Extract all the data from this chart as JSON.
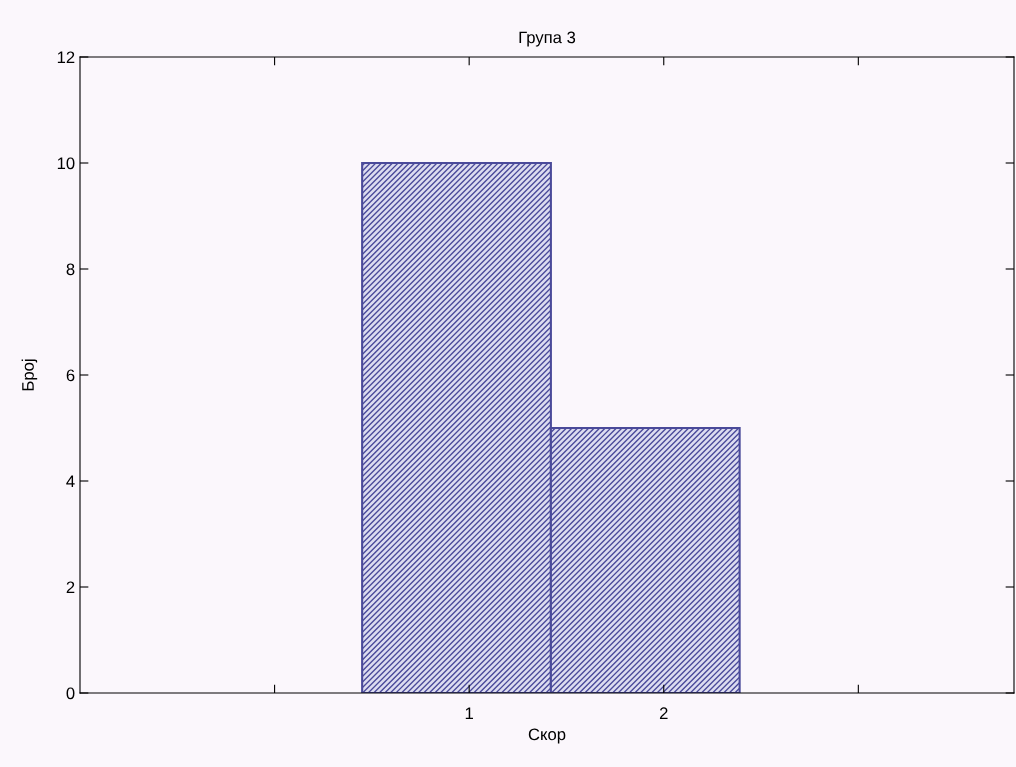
{
  "chart_data": {
    "type": "histogram",
    "title": "Група 3",
    "xlabel": "Скор",
    "ylabel": "Број",
    "bins": [
      0.45,
      1.42,
      2.39
    ],
    "values": [
      10,
      5
    ],
    "color": "#4a4a9a",
    "xlim": [
      -1,
      3.8
    ],
    "xticks": [
      {
        "value": 0,
        "label": null
      },
      1,
      2,
      {
        "value": 3,
        "label": null
      }
    ],
    "ylim": [
      0,
      12
    ],
    "yticks": [
      0,
      2,
      4,
      6,
      8,
      10,
      12
    ],
    "grid": false,
    "legend": false
  }
}
